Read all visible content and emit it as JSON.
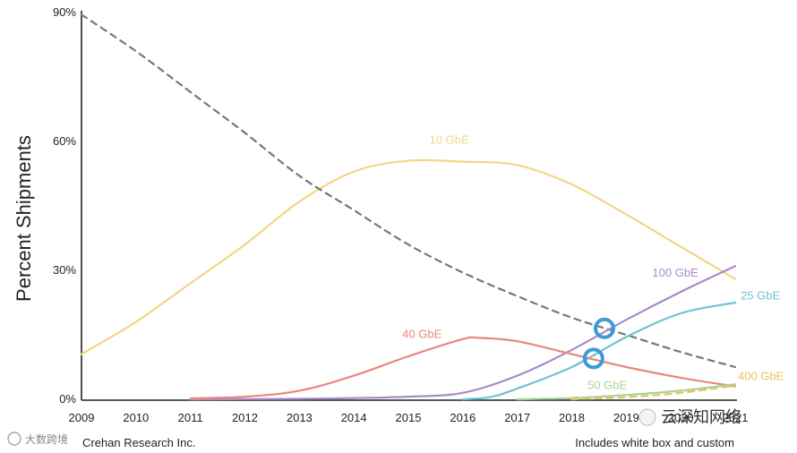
{
  "chart_data": {
    "type": "line",
    "ylabel": "Percent Shipments",
    "xlabel": "",
    "x": [
      2009,
      2010,
      2011,
      2012,
      2013,
      2014,
      2015,
      2016,
      2017,
      2018,
      2019,
      2020,
      2021
    ],
    "x_tick_labels": [
      "2009",
      "2010",
      "2011",
      "2012",
      "2013",
      "2014",
      "2015",
      "2016",
      "2017",
      "2018",
      "2019",
      "2020",
      "2021"
    ],
    "ylim": [
      0,
      90
    ],
    "y_ticks": [
      0,
      30,
      60,
      90
    ],
    "y_tick_labels": [
      "0%",
      "30%",
      "60%",
      "90%"
    ],
    "grid": false,
    "series": [
      {
        "name": "10 GbE",
        "color": "#f2d784",
        "dashed": false,
        "points": [
          [
            2009,
            10.5
          ],
          [
            2010,
            18
          ],
          [
            2011,
            27
          ],
          [
            2012,
            36
          ],
          [
            2013,
            46
          ],
          [
            2014,
            53
          ],
          [
            2015,
            55.5
          ],
          [
            2016,
            55.3
          ],
          [
            2017,
            54.5
          ],
          [
            2018,
            50
          ],
          [
            2019,
            43
          ],
          [
            2020,
            35.5
          ],
          [
            2021,
            28
          ]
        ]
      },
      {
        "name": "",
        "color": "#777777",
        "dashed": true,
        "points": [
          [
            2009,
            89.5
          ],
          [
            2010,
            81
          ],
          [
            2011,
            71.5
          ],
          [
            2012,
            62
          ],
          [
            2013,
            52
          ],
          [
            2014,
            44
          ],
          [
            2015,
            36
          ],
          [
            2016,
            29.5
          ],
          [
            2017,
            24
          ],
          [
            2018,
            19
          ],
          [
            2019,
            15
          ],
          [
            2020,
            11
          ],
          [
            2021,
            7.5
          ]
        ]
      },
      {
        "name": "100 GbE",
        "color": "#a98bc7",
        "dashed": false,
        "points": [
          [
            2011,
            0
          ],
          [
            2013,
            0.1
          ],
          [
            2014,
            0.3
          ],
          [
            2015,
            0.6
          ],
          [
            2016,
            1.5
          ],
          [
            2017,
            5.5
          ],
          [
            2018,
            11.5
          ],
          [
            2019,
            18.5
          ],
          [
            2020,
            25
          ],
          [
            2021,
            31
          ]
        ]
      },
      {
        "name": "25 GbE",
        "color": "#6ec3d3",
        "dashed": false,
        "points": [
          [
            2016,
            0
          ],
          [
            2016.5,
            0.5
          ],
          [
            2017,
            2.5
          ],
          [
            2018,
            7.5
          ],
          [
            2019,
            14.5
          ],
          [
            2020,
            20
          ],
          [
            2021,
            22.5
          ]
        ]
      },
      {
        "name": "40 GbE",
        "color": "#e8877c",
        "dashed": false,
        "points": [
          [
            2011,
            0.2
          ],
          [
            2012,
            0.6
          ],
          [
            2013,
            2
          ],
          [
            2014,
            5.5
          ],
          [
            2015,
            10
          ],
          [
            2016,
            14
          ],
          [
            2016.3,
            14.3
          ],
          [
            2017,
            13.5
          ],
          [
            2018,
            10.5
          ],
          [
            2019,
            7.5
          ],
          [
            2020,
            5
          ],
          [
            2021,
            3
          ]
        ]
      },
      {
        "name": "50 GbE",
        "color": "#a9d49a",
        "dashed": false,
        "points": [
          [
            2017,
            0
          ],
          [
            2018,
            0.3
          ],
          [
            2019,
            1
          ],
          [
            2020,
            2
          ],
          [
            2021,
            3.5
          ]
        ]
      },
      {
        "name": "400 GbE",
        "color": "#e8c45a",
        "dashed": true,
        "points": [
          [
            2018,
            0
          ],
          [
            2019,
            0.5
          ],
          [
            2020,
            1.5
          ],
          [
            2021,
            3.2
          ]
        ]
      }
    ],
    "highlight_circles": [
      {
        "x": 2018.6,
        "y": 16.5,
        "color": "#3b9ad9"
      },
      {
        "x": 2018.4,
        "y": 9.5,
        "color": "#3b9ad9"
      }
    ],
    "annotations": {
      "source": "Crehan Research Inc.",
      "note": "Includes white box and custom"
    }
  },
  "watermarks": {
    "left_text": "大数跨境",
    "right_text": "云深知网络"
  }
}
